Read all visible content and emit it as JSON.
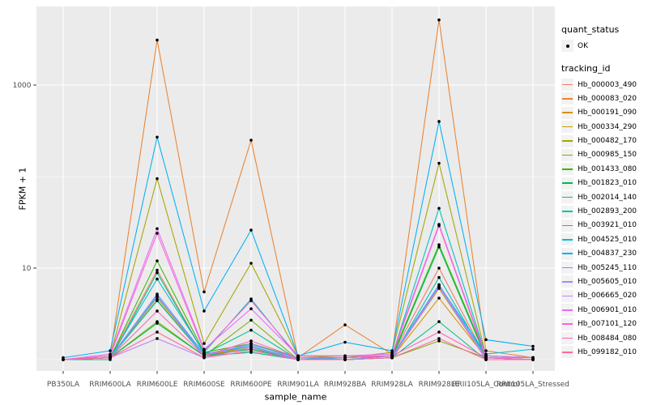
{
  "figure": {
    "background": "#FFFFFF",
    "panel_background": "#EBEBEB",
    "grid_color": "#FFFFFF",
    "tick_color": "#333333",
    "axis_text_color": "#4D4D4D",
    "point_color": "#000000",
    "legend_key_background": "#F2F2F2"
  },
  "y_axis": {
    "title": "FPKM + 1",
    "tick_labels": [
      "10",
      "1000"
    ],
    "tick_values": [
      10,
      1000
    ],
    "minor_values": [
      1,
      100
    ],
    "scale": "log10"
  },
  "x_axis": {
    "title": "sample_name"
  },
  "legend": {
    "quant_status": {
      "title": "quant_status",
      "items": [
        {
          "label": "OK",
          "marker": "point"
        }
      ]
    },
    "tracking_id": {
      "title": "tracking_id"
    }
  },
  "chart_data": {
    "type": "line",
    "title": "",
    "xlabel": "sample_name",
    "ylabel": "FPKM + 1",
    "y_scale": "log10",
    "ylim": [
      0.75,
      7500
    ],
    "y_breaks": [
      10,
      1000
    ],
    "y_minor_breaks": [
      1,
      100
    ],
    "grid": true,
    "legend_position": "right",
    "point_marker": "black-dot",
    "categories": [
      "PB350LA",
      "RRIM600LA",
      "RRIM600LE",
      "RRIM600SE",
      "RRIM600PE",
      "RRIM901LA",
      "RRIM928BA",
      "RRIM928LA",
      "RRIM928LE",
      "RRII105LA_Control",
      "RRII105LA_Stressed"
    ],
    "series": [
      {
        "name": "Hb_000003_490",
        "color": "#F8766D",
        "values": [
          1,
          1.05,
          9.5,
          1.15,
          1.3,
          1.05,
          1.05,
          1.1,
          10,
          1.05,
          1
        ]
      },
      {
        "name": "Hb_000083_020",
        "color": "#EA8331",
        "values": [
          1,
          1.1,
          3100,
          5.5,
          250,
          1.05,
          2.4,
          1.15,
          5150,
          1.25,
          1.05
        ]
      },
      {
        "name": "Hb_000191_090",
        "color": "#D89000",
        "values": [
          1,
          1.05,
          4.8,
          1.1,
          1.4,
          1,
          1,
          1.05,
          4.7,
          1.05,
          1
        ]
      },
      {
        "name": "Hb_000334_290",
        "color": "#C09B00",
        "values": [
          1,
          1.05,
          4.5,
          1.1,
          1.35,
          1,
          1,
          1.05,
          6,
          1,
          1
        ]
      },
      {
        "name": "Hb_000482_170",
        "color": "#A3A500",
        "values": [
          1,
          1.1,
          95,
          1.5,
          11.3,
          1.1,
          1.05,
          1.2,
          140,
          1.1,
          1.05
        ]
      },
      {
        "name": "Hb_000985_150",
        "color": "#7CAE00",
        "values": [
          1,
          1.05,
          2.6,
          1.1,
          2.7,
          1,
          1,
          1.05,
          1.6,
          1.05,
          1
        ]
      },
      {
        "name": "Hb_001433_080",
        "color": "#39B600",
        "values": [
          1,
          1.05,
          12,
          1.2,
          1.5,
          1.05,
          1,
          1.1,
          18,
          1.1,
          1.05
        ]
      },
      {
        "name": "Hb_001823_010",
        "color": "#00BB4E",
        "values": [
          1,
          1.05,
          2.5,
          1.1,
          1.3,
          1,
          1,
          1.05,
          17,
          1.05,
          1
        ]
      },
      {
        "name": "Hb_002014_140",
        "color": "#00C087",
        "values": [
          1,
          1,
          8.9,
          1.15,
          2.1,
          1,
          1,
          1.05,
          2.6,
          1,
          1
        ]
      },
      {
        "name": "Hb_002893_200",
        "color": "#00C1A7",
        "values": [
          1,
          1.05,
          4.4,
          1.1,
          1.2,
          1,
          1,
          1.05,
          7.9,
          1.05,
          1
        ]
      },
      {
        "name": "Hb_003921_010",
        "color": "#00BFC4",
        "values": [
          1,
          1.05,
          7.6,
          1.2,
          4.6,
          1.05,
          1.05,
          1.1,
          45,
          1.1,
          1.05
        ]
      },
      {
        "name": "Hb_004525_010",
        "color": "#00BAE0",
        "values": [
          1,
          1.05,
          4.9,
          1.15,
          1.4,
          1,
          1.05,
          1.1,
          6.5,
          1.15,
          1.3
        ]
      },
      {
        "name": "Hb_004837_230",
        "color": "#00B0F6",
        "values": [
          1.05,
          1.25,
          270,
          3.4,
          26,
          1.1,
          1.55,
          1.25,
          400,
          1.65,
          1.4
        ]
      },
      {
        "name": "Hb_005245_110",
        "color": "#619CFF",
        "values": [
          1,
          1.05,
          5.2,
          1.15,
          1.45,
          1.05,
          1,
          1.1,
          6.6,
          1.05,
          1
        ]
      },
      {
        "name": "Hb_005605_010",
        "color": "#9590FF",
        "values": [
          1,
          1.05,
          5,
          1.1,
          1.5,
          1,
          1,
          1.05,
          6.3,
          1.05,
          1
        ]
      },
      {
        "name": "Hb_006665_020",
        "color": "#C77CFF",
        "values": [
          1,
          1.05,
          1.7,
          1.05,
          1.35,
          1,
          1,
          1.05,
          6.2,
          1,
          1
        ]
      },
      {
        "name": "Hb_006901_010",
        "color": "#E76BF3",
        "values": [
          1,
          1.15,
          27,
          1.3,
          3.6,
          1.1,
          1.1,
          1.15,
          30,
          1.1,
          1.05
        ]
      },
      {
        "name": "Hb_007101_120",
        "color": "#FA62DB",
        "values": [
          1,
          1.1,
          24,
          1.25,
          4.4,
          1.1,
          1.1,
          1.1,
          29,
          1.05,
          1.05
        ]
      },
      {
        "name": "Hb_008484_080",
        "color": "#FF62BC",
        "values": [
          1,
          1.05,
          3.4,
          1.1,
          1.6,
          1.05,
          1.05,
          1.1,
          2,
          1.05,
          1
        ]
      },
      {
        "name": "Hb_099182_010",
        "color": "#FF6A98",
        "values": [
          1,
          1.05,
          2,
          1.05,
          1.25,
          1,
          1,
          1.05,
          1.7,
          1,
          1
        ]
      }
    ]
  }
}
